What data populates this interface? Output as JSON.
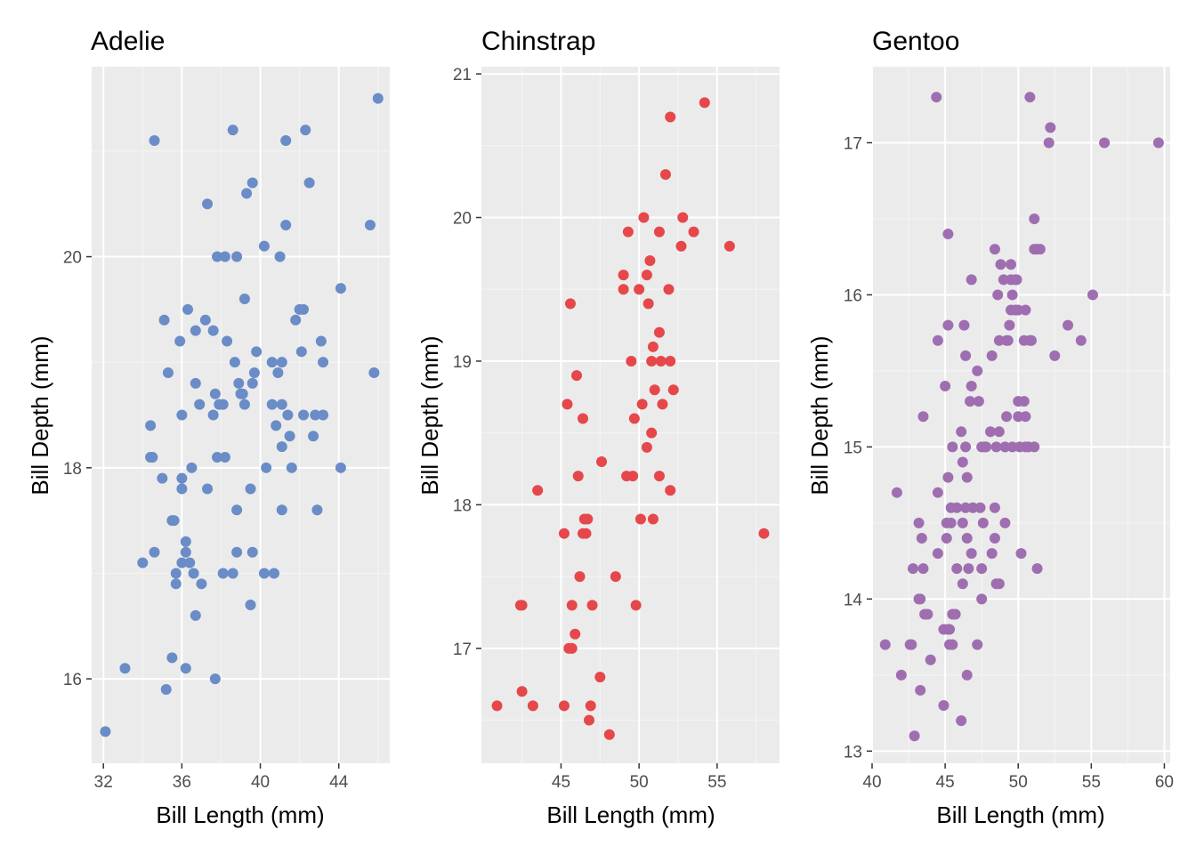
{
  "colors": {
    "panel_bg": "#EBEBEB",
    "grid_major": "#FFFFFF",
    "grid_minor": "#F5F5F5",
    "tick": "#333333",
    "tick_text": "#4D4D4D"
  },
  "chart_data": [
    {
      "type": "scatter",
      "title": "Adelie",
      "xlabel": "Bill Length (mm)",
      "ylabel": "Bill Depth (mm)",
      "color": "#6A8CC7",
      "xlim": [
        31.4,
        46.6
      ],
      "ylim": [
        15.2,
        21.8
      ],
      "xticks": [
        32,
        36,
        40,
        44
      ],
      "yticks": [
        16,
        18,
        20
      ],
      "grid": true,
      "points": [
        [
          32.1,
          15.5
        ],
        [
          33.1,
          16.1
        ],
        [
          34.0,
          17.1
        ],
        [
          34.4,
          18.1
        ],
        [
          34.5,
          18.1
        ],
        [
          34.6,
          21.1
        ],
        [
          34.6,
          17.2
        ],
        [
          34.4,
          18.4
        ],
        [
          35.0,
          17.9
        ],
        [
          35.1,
          19.4
        ],
        [
          35.2,
          15.9
        ],
        [
          35.3,
          18.9
        ],
        [
          35.5,
          17.5
        ],
        [
          35.6,
          17.5
        ],
        [
          35.5,
          16.2
        ],
        [
          35.7,
          16.9
        ],
        [
          35.7,
          17.0
        ],
        [
          35.9,
          19.2
        ],
        [
          36.0,
          18.5
        ],
        [
          36.0,
          17.9
        ],
        [
          36.0,
          17.8
        ],
        [
          36.0,
          17.1
        ],
        [
          36.2,
          17.3
        ],
        [
          36.2,
          17.2
        ],
        [
          36.2,
          16.1
        ],
        [
          36.3,
          19.5
        ],
        [
          36.4,
          17.1
        ],
        [
          36.5,
          18.0
        ],
        [
          36.6,
          17.0
        ],
        [
          36.7,
          19.3
        ],
        [
          36.7,
          18.8
        ],
        [
          36.7,
          16.6
        ],
        [
          36.9,
          18.6
        ],
        [
          37.0,
          16.9
        ],
        [
          37.2,
          19.4
        ],
        [
          37.3,
          20.5
        ],
        [
          37.3,
          17.8
        ],
        [
          37.6,
          19.3
        ],
        [
          37.6,
          18.5
        ],
        [
          37.7,
          18.7
        ],
        [
          37.7,
          16.0
        ],
        [
          37.8,
          18.1
        ],
        [
          37.8,
          20.0
        ],
        [
          37.9,
          18.6
        ],
        [
          38.1,
          18.6
        ],
        [
          38.1,
          17.0
        ],
        [
          38.2,
          18.1
        ],
        [
          38.2,
          20.0
        ],
        [
          38.3,
          19.2
        ],
        [
          38.6,
          21.2
        ],
        [
          38.6,
          17.0
        ],
        [
          38.7,
          19.0
        ],
        [
          38.8,
          17.6
        ],
        [
          38.8,
          17.2
        ],
        [
          38.8,
          20.0
        ],
        [
          38.9,
          18.8
        ],
        [
          39.0,
          18.7
        ],
        [
          39.1,
          18.7
        ],
        [
          39.2,
          19.6
        ],
        [
          39.2,
          18.6
        ],
        [
          39.3,
          20.6
        ],
        [
          39.5,
          17.8
        ],
        [
          39.5,
          16.7
        ],
        [
          39.6,
          17.2
        ],
        [
          39.6,
          18.8
        ],
        [
          39.6,
          20.7
        ],
        [
          39.7,
          18.9
        ],
        [
          39.8,
          19.1
        ],
        [
          40.2,
          20.1
        ],
        [
          40.2,
          17.0
        ],
        [
          40.3,
          18.0
        ],
        [
          40.6,
          18.6
        ],
        [
          40.6,
          19.0
        ],
        [
          40.7,
          17.0
        ],
        [
          40.8,
          18.4
        ],
        [
          40.9,
          18.9
        ],
        [
          41.0,
          20.0
        ],
        [
          41.1,
          19.0
        ],
        [
          41.1,
          18.2
        ],
        [
          41.1,
          17.6
        ],
        [
          41.1,
          18.6
        ],
        [
          41.3,
          20.3
        ],
        [
          41.3,
          21.1
        ],
        [
          41.4,
          18.5
        ],
        [
          41.5,
          18.3
        ],
        [
          41.6,
          18.0
        ],
        [
          41.8,
          19.4
        ],
        [
          42.0,
          19.5
        ],
        [
          42.1,
          19.1
        ],
        [
          42.2,
          19.5
        ],
        [
          42.2,
          18.5
        ],
        [
          42.3,
          21.2
        ],
        [
          42.5,
          20.7
        ],
        [
          42.7,
          18.3
        ],
        [
          42.8,
          18.5
        ],
        [
          42.9,
          17.6
        ],
        [
          43.1,
          19.2
        ],
        [
          43.2,
          18.5
        ],
        [
          43.2,
          19.0
        ],
        [
          44.1,
          19.7
        ],
        [
          44.1,
          18.0
        ],
        [
          45.6,
          20.3
        ],
        [
          45.8,
          18.9
        ],
        [
          46.0,
          21.5
        ]
      ]
    },
    {
      "type": "scatter",
      "title": "Chinstrap",
      "xlabel": "Bill Length (mm)",
      "ylabel": "Bill Depth (mm)",
      "color": "#E5474B",
      "xlim": [
        39.9,
        59.0
      ],
      "ylim": [
        16.2,
        21.05
      ],
      "xticks": [
        45,
        50,
        55
      ],
      "yticks": [
        17,
        18,
        19,
        20,
        21
      ],
      "grid": true,
      "points": [
        [
          40.9,
          16.6
        ],
        [
          42.4,
          17.3
        ],
        [
          42.5,
          16.7
        ],
        [
          42.5,
          17.3
        ],
        [
          43.2,
          16.6
        ],
        [
          43.5,
          18.1
        ],
        [
          45.2,
          17.8
        ],
        [
          45.2,
          16.6
        ],
        [
          45.4,
          18.7
        ],
        [
          45.5,
          17.0
        ],
        [
          45.6,
          19.4
        ],
        [
          45.7,
          17.0
        ],
        [
          45.7,
          17.3
        ],
        [
          45.9,
          17.1
        ],
        [
          46.0,
          18.9
        ],
        [
          46.1,
          18.2
        ],
        [
          46.2,
          17.5
        ],
        [
          46.4,
          17.8
        ],
        [
          46.4,
          18.6
        ],
        [
          46.5,
          17.9
        ],
        [
          46.6,
          17.8
        ],
        [
          46.7,
          17.9
        ],
        [
          46.8,
          16.5
        ],
        [
          46.9,
          16.6
        ],
        [
          47.0,
          17.3
        ],
        [
          47.5,
          16.8
        ],
        [
          47.6,
          18.3
        ],
        [
          48.1,
          16.4
        ],
        [
          48.5,
          17.5
        ],
        [
          49.0,
          19.5
        ],
        [
          49.0,
          19.6
        ],
        [
          49.2,
          18.2
        ],
        [
          49.3,
          19.9
        ],
        [
          49.5,
          19.0
        ],
        [
          49.6,
          18.2
        ],
        [
          49.7,
          18.6
        ],
        [
          49.8,
          17.3
        ],
        [
          50.0,
          19.5
        ],
        [
          50.1,
          17.9
        ],
        [
          50.2,
          18.7
        ],
        [
          50.3,
          20.0
        ],
        [
          50.5,
          19.6
        ],
        [
          50.5,
          18.4
        ],
        [
          50.6,
          19.4
        ],
        [
          50.7,
          19.7
        ],
        [
          50.8,
          18.5
        ],
        [
          50.8,
          19.0
        ],
        [
          50.9,
          19.1
        ],
        [
          50.9,
          17.9
        ],
        [
          51.0,
          18.8
        ],
        [
          51.3,
          18.2
        ],
        [
          51.3,
          19.2
        ],
        [
          51.3,
          19.9
        ],
        [
          51.4,
          19.0
        ],
        [
          51.5,
          18.7
        ],
        [
          51.7,
          20.3
        ],
        [
          51.9,
          19.5
        ],
        [
          52.0,
          18.1
        ],
        [
          52.0,
          19.0
        ],
        [
          52.0,
          20.7
        ],
        [
          52.2,
          18.8
        ],
        [
          52.7,
          19.8
        ],
        [
          52.8,
          20.0
        ],
        [
          53.5,
          19.9
        ],
        [
          54.2,
          20.8
        ],
        [
          55.8,
          19.8
        ],
        [
          58.0,
          17.8
        ]
      ]
    },
    {
      "type": "scatter",
      "title": "Gentoo",
      "xlabel": "Bill Length (mm)",
      "ylabel": "Bill Depth (mm)",
      "color": "#9F6EB0",
      "xlim": [
        40.0,
        60.4
      ],
      "ylim": [
        12.92,
        17.5
      ],
      "xticks": [
        40,
        45,
        50,
        55,
        60
      ],
      "yticks": [
        13,
        14,
        15,
        16,
        17
      ],
      "grid": true,
      "points": [
        [
          40.9,
          13.7
        ],
        [
          41.7,
          14.7
        ],
        [
          42.0,
          13.5
        ],
        [
          42.6,
          13.7
        ],
        [
          42.7,
          13.7
        ],
        [
          42.8,
          14.2
        ],
        [
          42.9,
          13.1
        ],
        [
          43.2,
          14.5
        ],
        [
          43.2,
          14.0
        ],
        [
          43.3,
          13.4
        ],
        [
          43.3,
          14.0
        ],
        [
          43.4,
          14.4
        ],
        [
          43.5,
          14.2
        ],
        [
          43.5,
          15.2
        ],
        [
          43.6,
          13.9
        ],
        [
          43.8,
          13.9
        ],
        [
          44.0,
          13.6
        ],
        [
          44.4,
          17.3
        ],
        [
          44.5,
          14.3
        ],
        [
          44.5,
          15.7
        ],
        [
          44.5,
          14.7
        ],
        [
          44.9,
          13.3
        ],
        [
          44.9,
          13.8
        ],
        [
          45.0,
          15.4
        ],
        [
          45.1,
          14.5
        ],
        [
          45.1,
          14.4
        ],
        [
          45.2,
          13.8
        ],
        [
          45.2,
          14.8
        ],
        [
          45.2,
          15.8
        ],
        [
          45.2,
          16.4
        ],
        [
          45.3,
          13.7
        ],
        [
          45.3,
          13.8
        ],
        [
          45.4,
          14.6
        ],
        [
          45.4,
          14.5
        ],
        [
          45.5,
          13.7
        ],
        [
          45.5,
          13.9
        ],
        [
          45.5,
          15.0
        ],
        [
          45.7,
          13.9
        ],
        [
          45.8,
          14.2
        ],
        [
          45.8,
          14.6
        ],
        [
          46.1,
          13.2
        ],
        [
          46.1,
          15.1
        ],
        [
          46.2,
          14.1
        ],
        [
          46.2,
          14.5
        ],
        [
          46.2,
          14.9
        ],
        [
          46.3,
          15.8
        ],
        [
          46.4,
          14.6
        ],
        [
          46.4,
          15.0
        ],
        [
          46.4,
          15.6
        ],
        [
          46.5,
          13.5
        ],
        [
          46.5,
          14.4
        ],
        [
          46.5,
          14.8
        ],
        [
          46.6,
          14.2
        ],
        [
          46.7,
          15.3
        ],
        [
          46.8,
          14.3
        ],
        [
          46.8,
          15.4
        ],
        [
          46.8,
          16.1
        ],
        [
          46.9,
          14.6
        ],
        [
          47.2,
          13.7
        ],
        [
          47.2,
          15.5
        ],
        [
          47.3,
          15.3
        ],
        [
          47.4,
          14.6
        ],
        [
          47.5,
          14.0
        ],
        [
          47.5,
          14.2
        ],
        [
          47.5,
          15.0
        ],
        [
          47.6,
          14.5
        ],
        [
          47.7,
          15.0
        ],
        [
          47.8,
          15.0
        ],
        [
          48.1,
          15.1
        ],
        [
          48.2,
          14.3
        ],
        [
          48.2,
          15.6
        ],
        [
          48.4,
          14.4
        ],
        [
          48.4,
          14.6
        ],
        [
          48.4,
          16.3
        ],
        [
          48.5,
          14.1
        ],
        [
          48.5,
          15.0
        ],
        [
          48.6,
          16.0
        ],
        [
          48.7,
          14.1
        ],
        [
          48.7,
          15.1
        ],
        [
          48.7,
          15.7
        ],
        [
          48.8,
          16.2
        ],
        [
          49.0,
          16.1
        ],
        [
          49.1,
          14.5
        ],
        [
          49.1,
          15.0
        ],
        [
          49.2,
          15.2
        ],
        [
          49.3,
          15.7
        ],
        [
          49.4,
          15.8
        ],
        [
          49.5,
          15.9
        ],
        [
          49.5,
          16.1
        ],
        [
          49.5,
          16.2
        ],
        [
          49.6,
          15.0
        ],
        [
          49.6,
          16.0
        ],
        [
          49.8,
          15.9
        ],
        [
          49.8,
          16.1
        ],
        [
          49.9,
          16.1
        ],
        [
          50.0,
          15.2
        ],
        [
          50.0,
          15.3
        ],
        [
          50.0,
          15.9
        ],
        [
          50.1,
          15.0
        ],
        [
          50.2,
          14.3
        ],
        [
          50.4,
          15.3
        ],
        [
          50.4,
          15.7
        ],
        [
          50.5,
          15.2
        ],
        [
          50.5,
          15.9
        ],
        [
          50.5,
          15.0
        ],
        [
          50.7,
          15.0
        ],
        [
          50.8,
          15.7
        ],
        [
          50.8,
          17.3
        ],
        [
          51.1,
          15.0
        ],
        [
          51.1,
          16.3
        ],
        [
          51.1,
          16.5
        ],
        [
          51.3,
          14.2
        ],
        [
          51.3,
          16.3
        ],
        [
          51.5,
          16.3
        ],
        [
          52.1,
          17.0
        ],
        [
          52.2,
          17.1
        ],
        [
          52.5,
          15.6
        ],
        [
          53.4,
          15.8
        ],
        [
          54.3,
          15.7
        ],
        [
          55.1,
          16.0
        ],
        [
          55.9,
          17.0
        ],
        [
          59.6,
          17.0
        ],
        [
          49.2,
          15.7
        ],
        [
          50.9,
          15.7
        ]
      ]
    }
  ]
}
